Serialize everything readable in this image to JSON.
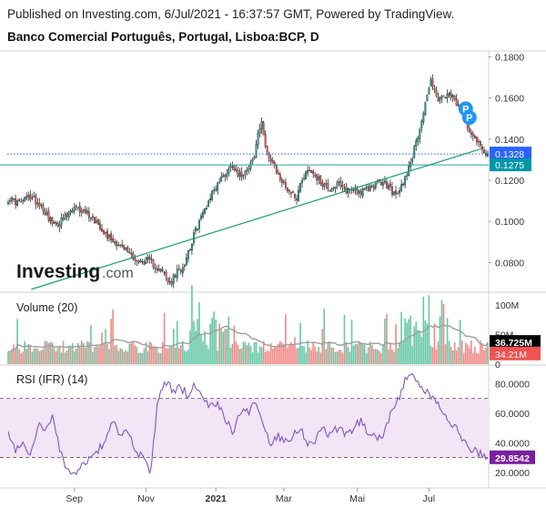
{
  "header": {
    "published": "Published on Investing.com, 6/Jul/2021 - 16:37:57 GMT, Powered by TradingView.",
    "symbol": "Banco Comercial Português, Portugal, Lisboa:BCP, D"
  },
  "logo": {
    "brand": "Investing",
    "suffix": ".com"
  },
  "chart_data": [
    {
      "type": "candlestick",
      "name": "price",
      "title": "Banco Comercial Português, Portugal, Lisboa:BCP, D",
      "x_ticks": [
        "Sep",
        "Nov",
        "2021",
        "Mar",
        "Mai",
        "Jul"
      ],
      "ylim": [
        0.066,
        0.182
      ],
      "y_ticks": [
        0.08,
        0.1,
        0.12,
        0.14,
        0.16,
        0.18
      ],
      "y_tick_labels": [
        "0.0800",
        "0.1000",
        "0.1200",
        "0.1400",
        "0.1600",
        "0.1800"
      ],
      "close_anchors": [
        [
          0,
          0.111
        ],
        [
          6,
          0.109
        ],
        [
          12,
          0.112
        ],
        [
          18,
          0.108
        ],
        [
          22,
          0.102
        ],
        [
          25,
          0.098
        ],
        [
          30,
          0.101
        ],
        [
          36,
          0.106
        ],
        [
          42,
          0.105
        ],
        [
          48,
          0.1
        ],
        [
          54,
          0.093
        ],
        [
          60,
          0.089
        ],
        [
          66,
          0.085
        ],
        [
          71,
          0.08
        ],
        [
          76,
          0.081
        ],
        [
          81,
          0.078
        ],
        [
          86,
          0.073
        ],
        [
          88,
          0.069
        ],
        [
          91,
          0.074
        ],
        [
          95,
          0.078
        ],
        [
          99,
          0.088
        ],
        [
          103,
          0.098
        ],
        [
          107,
          0.106
        ],
        [
          111,
          0.114
        ],
        [
          115,
          0.12
        ],
        [
          119,
          0.124
        ],
        [
          122,
          0.128
        ],
        [
          126,
          0.122
        ],
        [
          130,
          0.126
        ],
        [
          134,
          0.131
        ],
        [
          136,
          0.143
        ],
        [
          138,
          0.147
        ],
        [
          140,
          0.138
        ],
        [
          142,
          0.131
        ],
        [
          146,
          0.124
        ],
        [
          150,
          0.118
        ],
        [
          154,
          0.114
        ],
        [
          157,
          0.112
        ],
        [
          160,
          0.121
        ],
        [
          163,
          0.125
        ],
        [
          166,
          0.124
        ],
        [
          169,
          0.12
        ],
        [
          172,
          0.118
        ],
        [
          175,
          0.116
        ],
        [
          179,
          0.118
        ],
        [
          183,
          0.115
        ],
        [
          188,
          0.116
        ],
        [
          192,
          0.114
        ],
        [
          196,
          0.116
        ],
        [
          200,
          0.118
        ],
        [
          204,
          0.119
        ],
        [
          208,
          0.116
        ],
        [
          211,
          0.112
        ],
        [
          214,
          0.117
        ],
        [
          217,
          0.124
        ],
        [
          220,
          0.132
        ],
        [
          222,
          0.138
        ],
        [
          224,
          0.146
        ],
        [
          226,
          0.153
        ],
        [
          228,
          0.162
        ],
        [
          230,
          0.168
        ],
        [
          232,
          0.165
        ],
        [
          234,
          0.158
        ],
        [
          236,
          0.16
        ],
        [
          239,
          0.161
        ],
        [
          242,
          0.16
        ],
        [
          245,
          0.156
        ],
        [
          248,
          0.152
        ],
        [
          251,
          0.145
        ],
        [
          253,
          0.142
        ],
        [
          255,
          0.14
        ],
        [
          258,
          0.135
        ],
        [
          261,
          0.133
        ]
      ],
      "current_price": 0.1328,
      "current_price_label": "0.1328",
      "support_level": 0.1275,
      "support_label": "0.1275",
      "trendline": [
        [
          0.05,
          0.067
        ],
        [
          0.98,
          0.135
        ]
      ],
      "markers": [
        "P",
        "P"
      ],
      "colors": {
        "up": "#26a69a",
        "down": "#ef5350",
        "wick": "#000000",
        "trend": "#1a9d6e",
        "price_tag": "#2962ff",
        "support_tag": "#0097a7"
      }
    },
    {
      "type": "bar",
      "name": "volume",
      "title": "Volume (20)",
      "ylim": [
        0,
        120
      ],
      "y_ticks": [
        0,
        50,
        100
      ],
      "y_tick_labels": [
        "0",
        "50M",
        "100M"
      ],
      "unit": "M",
      "ma_label": "36.725M",
      "ma_value": 36.725,
      "last_label": "34.21M",
      "last_value": 34.21,
      "colors": {
        "up": "#67c8a6",
        "down": "#f08a86",
        "ma": "#9e9e9e"
      }
    },
    {
      "type": "line",
      "name": "rsi",
      "title": "RSI (IFR) (14)",
      "ylim": [
        10,
        92
      ],
      "y_ticks": [
        20,
        40,
        60,
        80
      ],
      "y_tick_labels": [
        "20.0000",
        "40.0000",
        "60.0000",
        "80.0000"
      ],
      "band": [
        30,
        70
      ],
      "values": [
        45,
        35,
        40,
        30,
        52,
        50,
        58,
        32,
        22,
        16,
        25,
        30,
        35,
        40,
        55,
        45,
        48,
        33,
        30,
        20,
        70,
        82,
        75,
        78,
        72,
        80,
        70,
        65,
        68,
        55,
        48,
        62,
        60,
        70,
        52,
        40,
        45,
        42,
        45,
        50,
        40,
        42,
        50,
        45,
        50,
        46,
        50,
        55,
        48,
        44,
        45,
        60,
        68,
        82,
        88,
        78,
        73,
        70,
        58,
        55,
        48,
        40,
        35,
        32,
        29.85
      ],
      "last_label": "29.8542",
      "last_value": 29.8542,
      "colors": {
        "line": "#7e57c2",
        "band": "#f3e5f5"
      }
    }
  ]
}
